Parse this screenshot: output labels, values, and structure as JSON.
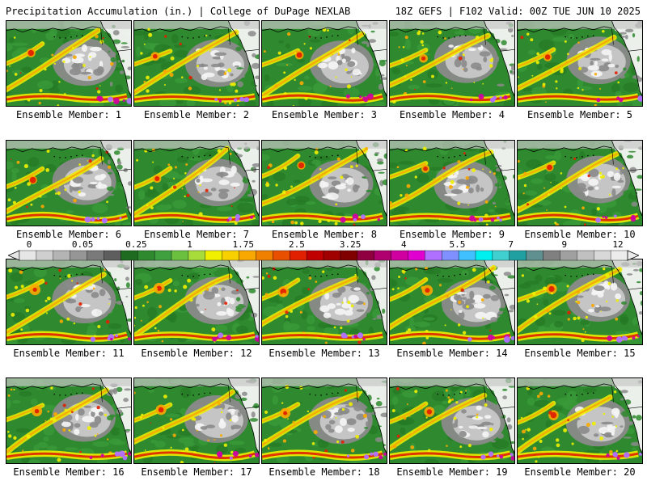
{
  "header": {
    "left": "Precipitation Accumulation (in.) | College of DuPage NEXLAB",
    "right": "18Z GEFS | F102 Valid: 00Z TUE JUN 10 2025"
  },
  "panels": [
    {
      "label": "Ensemble Member: 1"
    },
    {
      "label": "Ensemble Member: 2"
    },
    {
      "label": "Ensemble Member: 3"
    },
    {
      "label": "Ensemble Member: 4"
    },
    {
      "label": "Ensemble Member: 5"
    },
    {
      "label": "Ensemble Member: 6"
    },
    {
      "label": "Ensemble Member: 7"
    },
    {
      "label": "Ensemble Member: 8"
    },
    {
      "label": "Ensemble Member: 9"
    },
    {
      "label": "Ensemble Member: 10"
    },
    {
      "label": "Ensemble Member: 11"
    },
    {
      "label": "Ensemble Member: 12"
    },
    {
      "label": "Ensemble Member: 13"
    },
    {
      "label": "Ensemble Member: 14"
    },
    {
      "label": "Ensemble Member: 15"
    },
    {
      "label": "Ensemble Member: 16"
    },
    {
      "label": "Ensemble Member: 17"
    },
    {
      "label": "Ensemble Member: 18"
    },
    {
      "label": "Ensemble Member: 19"
    },
    {
      "label": "Ensemble Member: 20"
    }
  ],
  "colorbar": {
    "tick_labels": [
      "0",
      "0.05",
      "0.25",
      "1",
      "1.75",
      "2.5",
      "3.25",
      "4",
      "5.5",
      "7",
      "9",
      "12"
    ],
    "colors": [
      "#e6e6e6",
      "#cfcfcf",
      "#b4b4b4",
      "#969696",
      "#7a7a7a",
      "#5e5e5e",
      "#1f6b1f",
      "#2f8a2f",
      "#3fa03f",
      "#6cc040",
      "#a8dc3a",
      "#f0f000",
      "#f8d000",
      "#f8a800",
      "#f08000",
      "#e85000",
      "#e02000",
      "#c00000",
      "#a00000",
      "#800000",
      "#900040",
      "#b00070",
      "#d000a0",
      "#e000d0",
      "#b070ff",
      "#8090ff",
      "#40c0ff",
      "#00f0f0",
      "#40d0d0",
      "#20a0a0",
      "#609090",
      "#808080",
      "#a0a0a0",
      "#c0c0c0",
      "#d8d8d8",
      "#ececec"
    ]
  },
  "map_palette": {
    "ocean_base": "#2f8a2f",
    "dry_land": "#8a8a8a",
    "light_gray": "#c8c8c8",
    "white": "#f5f5f5",
    "moisture_band": "#f0f000",
    "moderate": "#f8a800",
    "heavy": "#e02000",
    "extreme": "#d000a0",
    "coastline": "#000000"
  }
}
